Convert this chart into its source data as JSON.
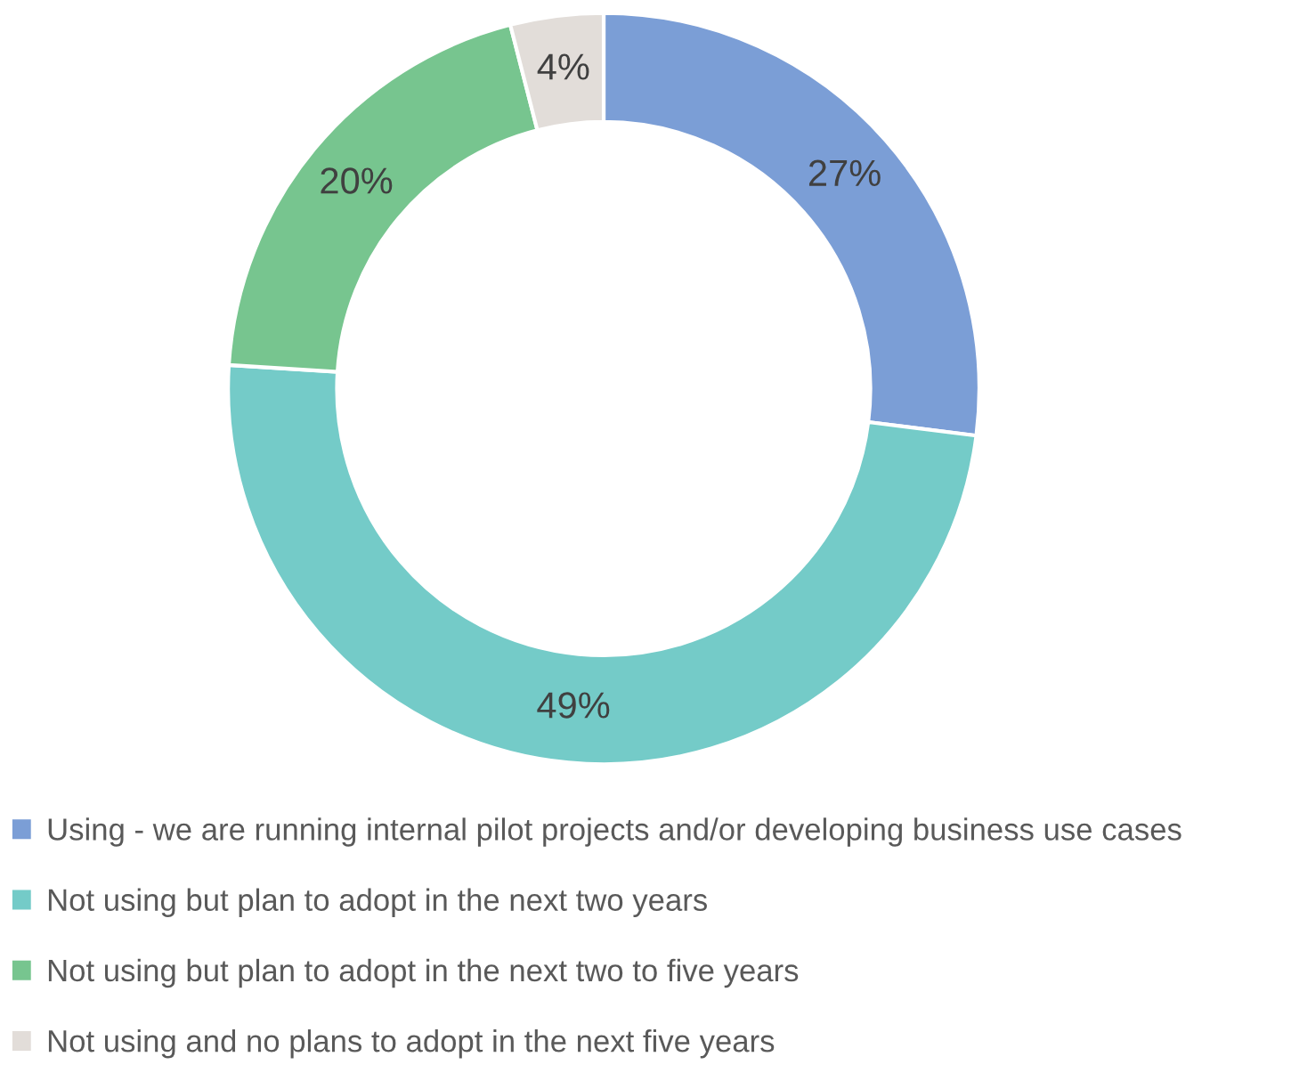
{
  "chart_data": {
    "type": "donut",
    "categories": [
      "Using - we are running internal pilot projects and/or developing business use cases",
      "Not using but plan to adopt in the next two years",
      "Not using but plan to adopt in the next two to five years",
      "Not using and no plans to adopt in the next five years"
    ],
    "values": [
      27,
      49,
      20,
      4
    ],
    "colors": [
      "#7b9ed6",
      "#74cbc8",
      "#77c58f",
      "#e2ddd9"
    ],
    "value_labels": [
      "27%",
      "49%",
      "20%",
      "4%"
    ],
    "legend": "bottom"
  }
}
